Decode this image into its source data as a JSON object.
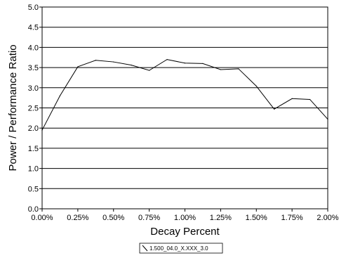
{
  "chart_data": {
    "type": "line",
    "title": "",
    "xlabel": "Decay Percent",
    "ylabel": "Power / Performance Ratio",
    "xlim": [
      0,
      2.0
    ],
    "ylim": [
      0,
      5.0
    ],
    "x_tick_labels": [
      "0.00%",
      "0.25%",
      "0.50%",
      "0.75%",
      "1.00%",
      "1.25%",
      "1.50%",
      "1.75%",
      "2.00%"
    ],
    "y_tick_labels": [
      "0.0",
      "0.5",
      "1.0",
      "1.5",
      "2.0",
      "2.5",
      "3.0",
      "3.5",
      "4.0",
      "4.5",
      "5.0"
    ],
    "grid": "horizontal",
    "legend_position": "bottom-center",
    "series": [
      {
        "name": "1.500_04.0_X.XXX_3.0",
        "color": "#000000",
        "x": [
          0.0,
          0.125,
          0.25,
          0.375,
          0.5,
          0.625,
          0.75,
          0.875,
          1.0,
          1.125,
          1.25,
          1.375,
          1.5,
          1.625,
          1.75,
          1.875,
          2.0
        ],
        "y": [
          1.95,
          2.8,
          3.52,
          3.68,
          3.64,
          3.56,
          3.43,
          3.7,
          3.61,
          3.6,
          3.45,
          3.47,
          3.04,
          2.47,
          2.73,
          2.71,
          2.22
        ]
      }
    ]
  }
}
